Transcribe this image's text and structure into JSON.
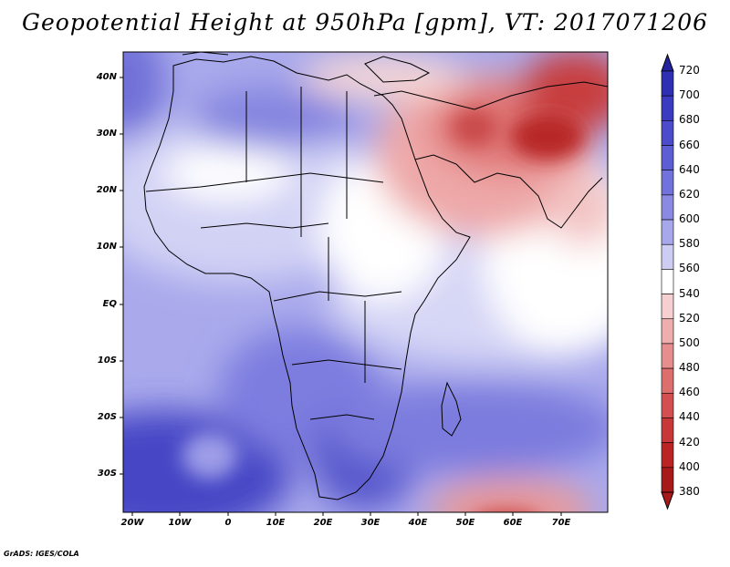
{
  "title": "Geopotential Height at 950hPa [gpm], VT: 2017071206",
  "credit": "GrADS: IGES/COLA",
  "lat_labels": [
    "40N",
    "30N",
    "20N",
    "10N",
    "EQ",
    "10S",
    "20S",
    "30S"
  ],
  "lon_labels": [
    "20W",
    "10W",
    "0",
    "10E",
    "20E",
    "30E",
    "40E",
    "50E",
    "60E",
    "70E"
  ],
  "colorbar": {
    "levels": [
      "720",
      "700",
      "680",
      "660",
      "640",
      "620",
      "600",
      "580",
      "560",
      "540",
      "520",
      "500",
      "480",
      "460",
      "440",
      "420",
      "400",
      "380"
    ],
    "colors": [
      "#2424a0",
      "#2f2fb4",
      "#3b3bc2",
      "#4b4bcc",
      "#5d5dd4",
      "#7272dc",
      "#8a8ae3",
      "#a7a7eb",
      "#cdcdf4",
      "#ffffff",
      "#f6d0d0",
      "#eeaeae",
      "#e68d8d",
      "#dd6e6e",
      "#d45050",
      "#c93838",
      "#bb2424",
      "#a81a1a"
    ]
  },
  "colors": {
    "max_blue": "#2a2ab0",
    "mid": "#ffffff",
    "max_red": "#b01e1e"
  }
}
